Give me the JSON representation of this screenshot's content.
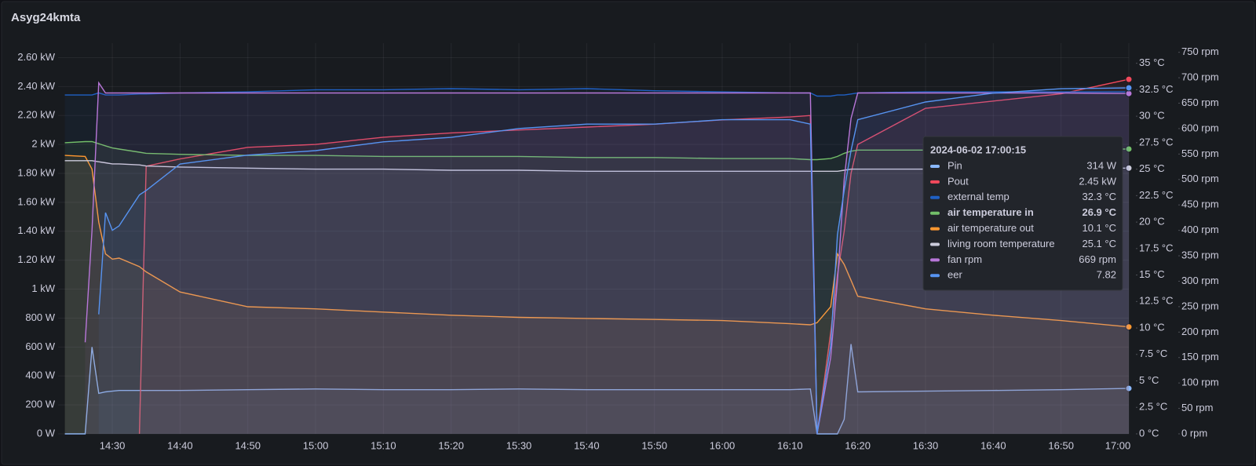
{
  "chart_data": {
    "type": "line",
    "title": "Asyg24kmta",
    "x": [
      "14:23",
      "14:26",
      "14:27",
      "14:28",
      "14:29",
      "14:30",
      "14:31",
      "14:34",
      "14:35",
      "14:40",
      "14:50",
      "15:00",
      "15:10",
      "15:20",
      "15:30",
      "15:40",
      "15:50",
      "16:00",
      "16:10",
      "16:13",
      "16:14",
      "16:16",
      "16:17",
      "16:18",
      "16:19",
      "16:20",
      "16:30",
      "16:40",
      "16:50",
      "17:00"
    ],
    "xlim": [
      "14:22",
      "17:00"
    ],
    "xticks": [
      "14:30",
      "14:40",
      "14:50",
      "15:00",
      "15:10",
      "15:20",
      "15:30",
      "15:40",
      "15:50",
      "16:00",
      "16:10",
      "16:20",
      "16:30",
      "16:40",
      "16:50",
      "17:00"
    ],
    "ylim": [
      0,
      2700
    ],
    "yticks": [
      {
        "value": 0,
        "label": "0 W"
      },
      {
        "value": 200,
        "label": "200 W"
      },
      {
        "value": 400,
        "label": "400 W"
      },
      {
        "value": 600,
        "label": "600 W"
      },
      {
        "value": 800,
        "label": "800 W"
      },
      {
        "value": 1000,
        "label": "1 kW"
      },
      {
        "value": 1200,
        "label": "1.20 kW"
      },
      {
        "value": 1400,
        "label": "1.40 kW"
      },
      {
        "value": 1600,
        "label": "1.60 kW"
      },
      {
        "value": 1800,
        "label": "1.80 kW"
      },
      {
        "value": 2000,
        "label": "2 kW"
      },
      {
        "value": 2200,
        "label": "2.20 kW"
      },
      {
        "value": 2400,
        "label": "2.40 kW"
      },
      {
        "value": 2600,
        "label": "2.60 kW"
      }
    ],
    "y2lim": [
      0,
      36.9
    ],
    "y2ticks": [
      {
        "value": 0,
        "label": "0 °C"
      },
      {
        "value": 2.5,
        "label": "2.5 °C"
      },
      {
        "value": 5,
        "label": "5 °C"
      },
      {
        "value": 7.5,
        "label": "7.5 °C"
      },
      {
        "value": 10,
        "label": "10 °C"
      },
      {
        "value": 12.5,
        "label": "12.5 °C"
      },
      {
        "value": 15,
        "label": "15 °C"
      },
      {
        "value": 17.5,
        "label": "17.5 °C"
      },
      {
        "value": 20,
        "label": "20 °C"
      },
      {
        "value": 22.5,
        "label": "22.5 °C"
      },
      {
        "value": 25,
        "label": "25 °C"
      },
      {
        "value": 27.5,
        "label": "27.5 °C"
      },
      {
        "value": 30,
        "label": "30 °C"
      },
      {
        "value": 32.5,
        "label": "32.5 °C"
      },
      {
        "value": 35,
        "label": "35 °C"
      }
    ],
    "y3lim": [
      0,
      768
    ],
    "y3ticks": [
      {
        "value": 0,
        "label": "0 rpm"
      },
      {
        "value": 50,
        "label": "50 rpm"
      },
      {
        "value": 100,
        "label": "100 rpm"
      },
      {
        "value": 150,
        "label": "150 rpm"
      },
      {
        "value": 200,
        "label": "200 rpm"
      },
      {
        "value": 250,
        "label": "250 rpm"
      },
      {
        "value": 300,
        "label": "300 rpm"
      },
      {
        "value": 350,
        "label": "350 rpm"
      },
      {
        "value": 400,
        "label": "400 rpm"
      },
      {
        "value": 450,
        "label": "450 rpm"
      },
      {
        "value": 500,
        "label": "500 rpm"
      },
      {
        "value": 550,
        "label": "550 rpm"
      },
      {
        "value": 600,
        "label": "600 rpm"
      },
      {
        "value": 650,
        "label": "650 rpm"
      },
      {
        "value": 700,
        "label": "700 rpm"
      },
      {
        "value": 750,
        "label": "750 rpm"
      }
    ],
    "y4lim": [
      0,
      8.83
    ],
    "grid": true,
    "series": [
      {
        "name": "Pin",
        "color": "#8ab8ff",
        "axis": "y",
        "values": [
          0,
          0,
          600,
          280,
          290,
          295,
          300,
          300,
          300,
          300,
          305,
          310,
          305,
          305,
          310,
          305,
          305,
          305,
          305,
          310,
          0,
          0,
          0,
          100,
          620,
          290,
          295,
          300,
          305,
          314
        ]
      },
      {
        "name": "Pout",
        "color": "#f2495c",
        "axis": "y",
        "values": [
          null,
          null,
          null,
          null,
          null,
          null,
          null,
          0,
          1850,
          1900,
          1980,
          2000,
          2050,
          2080,
          2100,
          2120,
          2140,
          2170,
          2190,
          2200,
          0,
          700,
          1100,
          1400,
          1800,
          2000,
          2250,
          2300,
          2350,
          2450
        ]
      },
      {
        "name": "external temp",
        "color": "#1f60c4",
        "axis": "y2",
        "values": [
          32.0,
          32.0,
          32.0,
          32.2,
          32.0,
          32.0,
          32.0,
          32.1,
          32.1,
          32.2,
          32.3,
          32.5,
          32.5,
          32.6,
          32.5,
          32.6,
          32.4,
          32.3,
          32.2,
          32.2,
          31.9,
          31.9,
          32.0,
          32.0,
          32.1,
          32.2,
          32.3,
          32.3,
          32.3,
          32.3
        ]
      },
      {
        "name": "air temperature in",
        "color": "#73bf69",
        "axis": "y2",
        "values": [
          27.5,
          27.6,
          27.6,
          27.4,
          27.2,
          27.0,
          26.9,
          26.6,
          26.5,
          26.4,
          26.3,
          26.3,
          26.2,
          26.2,
          26.2,
          26.1,
          26.1,
          26.0,
          26.0,
          25.9,
          25.9,
          26.0,
          26.2,
          26.5,
          26.7,
          26.8,
          26.8,
          26.9,
          26.9,
          26.9
        ]
      },
      {
        "name": "air temperature out",
        "color": "#ff9830",
        "axis": "y2",
        "values": [
          26.3,
          26.2,
          25.0,
          20.0,
          17.0,
          16.5,
          16.6,
          15.8,
          15.3,
          13.4,
          12.0,
          11.8,
          11.5,
          11.2,
          11.0,
          10.9,
          10.8,
          10.7,
          10.4,
          10.3,
          10.5,
          12.0,
          17.0,
          16.0,
          14.5,
          13.0,
          11.8,
          11.2,
          10.7,
          10.1
        ]
      },
      {
        "name": "living room temperature",
        "color": "#ccccdc",
        "axis": "y2",
        "values": [
          25.8,
          25.8,
          25.8,
          25.7,
          25.6,
          25.5,
          25.5,
          25.4,
          25.3,
          25.2,
          25.1,
          25.0,
          25.0,
          24.9,
          24.9,
          24.8,
          24.8,
          24.8,
          24.8,
          24.8,
          24.8,
          24.8,
          24.8,
          24.9,
          25.0,
          25.0,
          25.0,
          25.1,
          25.1,
          25.1
        ]
      },
      {
        "name": "fan rpm",
        "color": "#b877d9",
        "axis": "y3",
        "values": [
          null,
          180,
          400,
          690,
          670,
          670,
          670,
          670,
          670,
          670,
          670,
          670,
          670,
          670,
          670,
          670,
          670,
          670,
          670,
          670,
          0,
          150,
          300,
          500,
          620,
          670,
          670,
          670,
          670,
          669
        ]
      },
      {
        "name": "eer",
        "color": "#5794f2",
        "axis": "y4",
        "values": [
          null,
          null,
          null,
          2.7,
          5.0,
          4.6,
          4.7,
          5.4,
          5.5,
          6.1,
          6.3,
          6.4,
          6.6,
          6.7,
          6.9,
          7.0,
          7.0,
          7.1,
          7.1,
          7.0,
          0,
          2.0,
          4.5,
          5.5,
          6.4,
          7.1,
          7.5,
          7.7,
          7.8,
          7.82
        ]
      }
    ],
    "tooltip": {
      "title": "2024-06-02 17:00:15",
      "bold": 3,
      "labels": [
        "314 W",
        "2.45 kW",
        "32.3 °C",
        "26.9 °C",
        "10.1 °C",
        "25.1 °C",
        "669 rpm",
        "7.82"
      ]
    }
  }
}
